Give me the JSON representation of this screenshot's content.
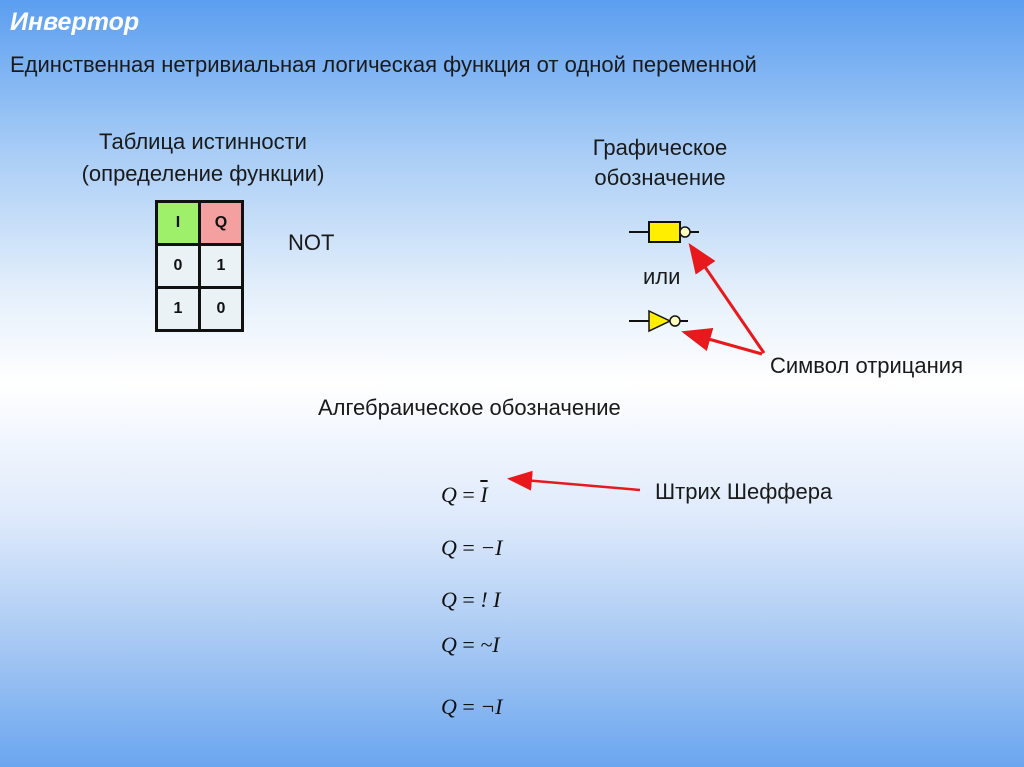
{
  "title": "Инвертор",
  "subtitle": "Единственная нетривиальная логическая функция от одной переменной",
  "truth_table": {
    "heading_line1": "Таблица истинности",
    "heading_line2": "(определение функции)",
    "headers": [
      "I",
      "Q"
    ],
    "rows": [
      [
        "0",
        "1"
      ],
      [
        "1",
        "0"
      ]
    ],
    "colors": {
      "input_header": "#9ef06a",
      "output_header": "#f5a0a0"
    }
  },
  "function_name": "NOT",
  "graphic": {
    "heading_line1": "Графическое",
    "heading_line2": "обозначение",
    "or": "или",
    "gate_color": "#ffee00"
  },
  "negation_symbol_label": "Символ отрицания",
  "algebraic_heading": "Алгебраическое обозначение",
  "sheffer_label": "Штрих Шеффера",
  "formulas": {
    "lhs": "Q",
    "eq": "=",
    "f1": "I",
    "f2": "−I",
    "f3": "! I",
    "f4": "~I",
    "f5": "¬I"
  },
  "arrow_color": "#e8191c"
}
